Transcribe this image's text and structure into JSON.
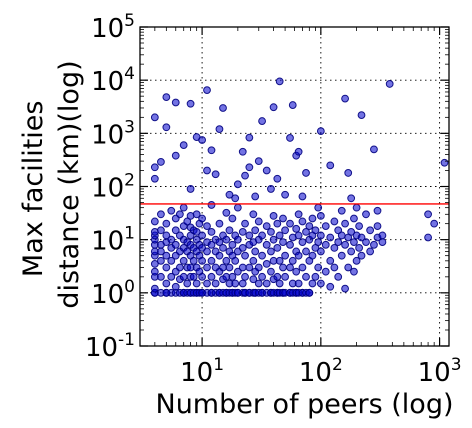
{
  "chart_data": {
    "type": "scatter",
    "xlabel": "Number of peers (log)",
    "ylabel_lines": [
      "Max facilities",
      "distance (km)(log)"
    ],
    "x_scale": "log",
    "y_scale": "log",
    "xlim": [
      3,
      1200
    ],
    "ylim": [
      0.1,
      100000
    ],
    "x_ticks": [
      {
        "value": 10,
        "base": "10",
        "exp": "1"
      },
      {
        "value": 100,
        "base": "10",
        "exp": "2"
      },
      {
        "value": 1000,
        "base": "10",
        "exp": "3"
      }
    ],
    "y_ticks": [
      {
        "value": 0.1,
        "base": "10",
        "exp": "-1"
      },
      {
        "value": 1,
        "base": "10",
        "exp": "0"
      },
      {
        "value": 10,
        "base": "10",
        "exp": "1"
      },
      {
        "value": 100,
        "base": "10",
        "exp": "2"
      },
      {
        "value": 1000,
        "base": "10",
        "exp": "3"
      },
      {
        "value": 10000,
        "base": "10",
        "exp": "4"
      },
      {
        "value": 100000,
        "base": "10",
        "exp": "5"
      }
    ],
    "grid": true,
    "reference_line": {
      "y": 47,
      "color": "#ff0000"
    },
    "marker_color": "#0000cc",
    "marker_edge": "#000080",
    "points": [
      [
        4,
        1
      ],
      [
        4,
        1
      ],
      [
        4,
        1.2
      ],
      [
        4,
        2
      ],
      [
        4,
        2.5
      ],
      [
        4,
        3.5
      ],
      [
        4,
        5
      ],
      [
        4,
        6
      ],
      [
        4,
        8
      ],
      [
        4,
        10
      ],
      [
        4,
        12
      ],
      [
        4,
        14
      ],
      [
        4,
        22
      ],
      [
        4,
        140
      ],
      [
        4,
        230
      ],
      [
        4,
        2000
      ],
      [
        4.5,
        1
      ],
      [
        4.5,
        2
      ],
      [
        4.5,
        4
      ],
      [
        4.5,
        6
      ],
      [
        4.5,
        8
      ],
      [
        4.5,
        15
      ],
      [
        4.5,
        30
      ],
      [
        4.5,
        290
      ],
      [
        5,
        1
      ],
      [
        5,
        1
      ],
      [
        5,
        1.5
      ],
      [
        5,
        3
      ],
      [
        5,
        5
      ],
      [
        5,
        9
      ],
      [
        5,
        12
      ],
      [
        5,
        20
      ],
      [
        5,
        1300
      ],
      [
        5,
        4800
      ],
      [
        5.5,
        1
      ],
      [
        5.5,
        2
      ],
      [
        5.5,
        4
      ],
      [
        5.5,
        7
      ],
      [
        5.5,
        10
      ],
      [
        5.5,
        35
      ],
      [
        6,
        1
      ],
      [
        6,
        1.3
      ],
      [
        6,
        2.5
      ],
      [
        6,
        5
      ],
      [
        6,
        8
      ],
      [
        6,
        15
      ],
      [
        6,
        25
      ],
      [
        6,
        380
      ],
      [
        6,
        3800
      ],
      [
        6.5,
        1
      ],
      [
        6.5,
        1.8
      ],
      [
        6.5,
        3
      ],
      [
        6.5,
        6
      ],
      [
        6.5,
        12
      ],
      [
        6.5,
        30
      ],
      [
        7,
        1
      ],
      [
        7,
        1
      ],
      [
        7,
        2
      ],
      [
        7,
        4
      ],
      [
        7,
        7
      ],
      [
        7,
        10
      ],
      [
        7,
        18
      ],
      [
        7,
        40
      ],
      [
        7,
        600
      ],
      [
        7.5,
        1
      ],
      [
        7.5,
        1.5
      ],
      [
        7.5,
        3
      ],
      [
        7.5,
        6
      ],
      [
        7.5,
        9
      ],
      [
        7.5,
        22
      ],
      [
        8,
        1
      ],
      [
        8,
        1
      ],
      [
        8,
        2
      ],
      [
        8,
        3
      ],
      [
        8,
        5
      ],
      [
        8,
        8
      ],
      [
        8,
        12
      ],
      [
        8,
        17
      ],
      [
        8,
        28
      ],
      [
        8,
        90
      ],
      [
        8,
        3600
      ],
      [
        8.5,
        1
      ],
      [
        8.5,
        2
      ],
      [
        8.5,
        4
      ],
      [
        8.5,
        7
      ],
      [
        8.5,
        15
      ],
      [
        9,
        1
      ],
      [
        9,
        1
      ],
      [
        9,
        1.5
      ],
      [
        9,
        3
      ],
      [
        9,
        6
      ],
      [
        9,
        10
      ],
      [
        9,
        14
      ],
      [
        9,
        30
      ],
      [
        9,
        850
      ],
      [
        9.5,
        1
      ],
      [
        9.5,
        2.5
      ],
      [
        9.5,
        5
      ],
      [
        9.5,
        8
      ],
      [
        9.5,
        20
      ],
      [
        10,
        1
      ],
      [
        10,
        1
      ],
      [
        10,
        2
      ],
      [
        10,
        4
      ],
      [
        10,
        7
      ],
      [
        10,
        12
      ],
      [
        10,
        25
      ],
      [
        10,
        750
      ],
      [
        11,
        1
      ],
      [
        11,
        1.5
      ],
      [
        11,
        3
      ],
      [
        11,
        6
      ],
      [
        11,
        9
      ],
      [
        11,
        18
      ],
      [
        11,
        200
      ],
      [
        11,
        6500
      ],
      [
        12,
        1
      ],
      [
        12,
        1
      ],
      [
        12,
        2
      ],
      [
        12,
        4
      ],
      [
        12,
        8
      ],
      [
        12,
        14
      ],
      [
        12,
        45
      ],
      [
        12,
        480
      ],
      [
        13,
        1
      ],
      [
        13,
        1.5
      ],
      [
        13,
        3
      ],
      [
        13,
        6
      ],
      [
        13,
        10
      ],
      [
        13,
        170
      ],
      [
        14,
        1
      ],
      [
        14,
        1
      ],
      [
        14,
        2.5
      ],
      [
        14,
        5
      ],
      [
        14,
        9
      ],
      [
        14,
        20
      ],
      [
        14,
        1200
      ],
      [
        15,
        1
      ],
      [
        15,
        1.8
      ],
      [
        15,
        3
      ],
      [
        15,
        7
      ],
      [
        15,
        12
      ],
      [
        15,
        3000
      ],
      [
        16,
        1
      ],
      [
        16,
        1
      ],
      [
        16,
        2
      ],
      [
        16,
        4
      ],
      [
        16,
        10
      ],
      [
        16,
        32
      ],
      [
        17,
        1
      ],
      [
        17,
        1.5
      ],
      [
        17,
        3
      ],
      [
        17,
        6
      ],
      [
        17,
        15
      ],
      [
        17,
        70
      ],
      [
        18,
        1
      ],
      [
        18,
        1
      ],
      [
        18,
        2
      ],
      [
        18,
        5
      ],
      [
        18,
        8
      ],
      [
        18,
        25
      ],
      [
        19,
        1
      ],
      [
        19,
        1.5
      ],
      [
        19,
        4
      ],
      [
        19,
        12
      ],
      [
        19,
        60
      ],
      [
        20,
        1
      ],
      [
        20,
        1
      ],
      [
        20,
        2.5
      ],
      [
        20,
        6
      ],
      [
        20,
        10
      ],
      [
        20,
        40
      ],
      [
        20,
        110
      ],
      [
        22,
        1
      ],
      [
        22,
        1.5
      ],
      [
        22,
        3
      ],
      [
        22,
        7
      ],
      [
        22,
        14
      ],
      [
        22,
        450
      ],
      [
        23,
        1
      ],
      [
        23,
        1
      ],
      [
        23,
        2
      ],
      [
        23,
        5
      ],
      [
        23,
        20
      ],
      [
        23,
        160
      ],
      [
        25,
        1
      ],
      [
        25,
        1
      ],
      [
        25,
        3
      ],
      [
        25,
        8
      ],
      [
        25,
        12
      ],
      [
        25,
        230
      ],
      [
        25,
        830
      ],
      [
        27,
        1
      ],
      [
        27,
        1.8
      ],
      [
        27,
        4
      ],
      [
        27,
        9
      ],
      [
        27,
        30
      ],
      [
        28,
        1
      ],
      [
        28,
        1
      ],
      [
        28,
        2.5
      ],
      [
        28,
        6
      ],
      [
        28,
        15
      ],
      [
        28,
        65
      ],
      [
        30,
        1
      ],
      [
        30,
        1.5
      ],
      [
        30,
        3
      ],
      [
        30,
        10
      ],
      [
        30,
        22
      ],
      [
        30,
        300
      ],
      [
        32,
        1
      ],
      [
        32,
        1
      ],
      [
        32,
        2
      ],
      [
        32,
        5
      ],
      [
        32,
        12
      ],
      [
        32,
        1700
      ],
      [
        35,
        1
      ],
      [
        35,
        1.5
      ],
      [
        35,
        3.5
      ],
      [
        35,
        8
      ],
      [
        35,
        18
      ],
      [
        35,
        200
      ],
      [
        38,
        1
      ],
      [
        38,
        1
      ],
      [
        38,
        2.5
      ],
      [
        38,
        6
      ],
      [
        38,
        14
      ],
      [
        38,
        90
      ],
      [
        40,
        1
      ],
      [
        40,
        1.8
      ],
      [
        40,
        4
      ],
      [
        40,
        10
      ],
      [
        40,
        28
      ],
      [
        40,
        3100
      ],
      [
        43,
        1
      ],
      [
        43,
        1
      ],
      [
        43,
        2
      ],
      [
        43,
        7
      ],
      [
        43,
        20
      ],
      [
        43,
        140
      ],
      [
        45,
        1
      ],
      [
        45,
        1.5
      ],
      [
        45,
        4
      ],
      [
        45,
        12
      ],
      [
        45,
        9500
      ],
      [
        48,
        1
      ],
      [
        48,
        1
      ],
      [
        48,
        3
      ],
      [
        48,
        9
      ],
      [
        48,
        25
      ],
      [
        50,
        1
      ],
      [
        50,
        2
      ],
      [
        50,
        5
      ],
      [
        50,
        15
      ],
      [
        50,
        70
      ],
      [
        55,
        1
      ],
      [
        55,
        1
      ],
      [
        55,
        3
      ],
      [
        55,
        8
      ],
      [
        55,
        20
      ],
      [
        55,
        820
      ],
      [
        58,
        1
      ],
      [
        58,
        1.5
      ],
      [
        58,
        4
      ],
      [
        58,
        11
      ],
      [
        58,
        3400
      ],
      [
        62,
        1
      ],
      [
        62,
        1
      ],
      [
        62,
        2.5
      ],
      [
        62,
        6
      ],
      [
        62,
        16
      ],
      [
        62,
        380
      ],
      [
        65,
        1
      ],
      [
        65,
        1.5
      ],
      [
        65,
        5
      ],
      [
        65,
        12
      ],
      [
        65,
        30
      ],
      [
        65,
        450
      ],
      [
        70,
        1
      ],
      [
        70,
        1
      ],
      [
        70,
        3
      ],
      [
        70,
        9
      ],
      [
        70,
        22
      ],
      [
        70,
        65
      ],
      [
        75,
        1
      ],
      [
        75,
        2
      ],
      [
        75,
        6
      ],
      [
        75,
        14
      ],
      [
        75,
        180
      ],
      [
        80,
        1
      ],
      [
        80,
        1
      ],
      [
        80,
        4
      ],
      [
        80,
        10
      ],
      [
        80,
        18
      ],
      [
        85,
        1.5
      ],
      [
        85,
        5
      ],
      [
        85,
        12
      ],
      [
        85,
        25
      ],
      [
        90,
        2
      ],
      [
        90,
        7
      ],
      [
        90,
        15
      ],
      [
        95,
        3
      ],
      [
        95,
        9
      ],
      [
        95,
        40
      ],
      [
        100,
        1.5
      ],
      [
        100,
        6
      ],
      [
        100,
        12
      ],
      [
        100,
        28
      ],
      [
        100,
        1100
      ],
      [
        110,
        2.5
      ],
      [
        110,
        8
      ],
      [
        110,
        18
      ],
      [
        120,
        1.3
      ],
      [
        120,
        4
      ],
      [
        120,
        11
      ],
      [
        120,
        250
      ],
      [
        130,
        3
      ],
      [
        130,
        7
      ],
      [
        130,
        22
      ],
      [
        140,
        2
      ],
      [
        140,
        9
      ],
      [
        140,
        15
      ],
      [
        150,
        5
      ],
      [
        150,
        12
      ],
      [
        150,
        35
      ],
      [
        160,
        1.2
      ],
      [
        160,
        8
      ],
      [
        160,
        20
      ],
      [
        160,
        4500
      ],
      [
        170,
        3
      ],
      [
        170,
        11
      ],
      [
        170,
        180
      ],
      [
        180,
        6
      ],
      [
        180,
        14
      ],
      [
        180,
        60
      ],
      [
        190,
        2.5
      ],
      [
        190,
        9
      ],
      [
        190,
        25
      ],
      [
        200,
        4
      ],
      [
        200,
        12
      ],
      [
        200,
        40
      ],
      [
        210,
        7
      ],
      [
        210,
        18
      ],
      [
        220,
        5
      ],
      [
        220,
        11
      ],
      [
        220,
        2200
      ],
      [
        240,
        9
      ],
      [
        240,
        30
      ],
      [
        260,
        6
      ],
      [
        260,
        15
      ],
      [
        280,
        8
      ],
      [
        280,
        500
      ],
      [
        300,
        11
      ],
      [
        300,
        18
      ],
      [
        300,
        35
      ],
      [
        330,
        12
      ],
      [
        330,
        9
      ],
      [
        380,
        8500
      ],
      [
        800,
        11
      ],
      [
        800,
        30
      ],
      [
        900,
        20
      ],
      [
        1100,
        280
      ]
    ]
  }
}
